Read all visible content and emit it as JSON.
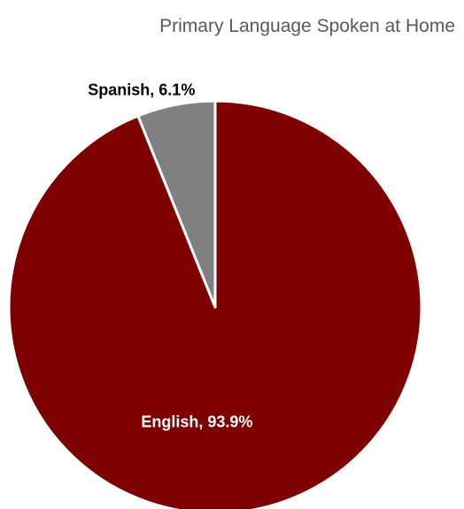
{
  "chart_data": {
    "type": "pie",
    "title": "Primary Language Spoken at Home",
    "categories": [
      "English",
      "Spanish"
    ],
    "values": [
      93.9,
      6.1
    ],
    "data_labels": [
      "English, 93.9%",
      "Spanish, 6.1%"
    ],
    "colors": [
      "#7f0000",
      "#808080"
    ],
    "label_colors": [
      "#ffffff",
      "#000000"
    ],
    "label_placement": [
      "inside",
      "outside"
    ],
    "slice_border_color": "#ffffff",
    "legend": "none"
  }
}
